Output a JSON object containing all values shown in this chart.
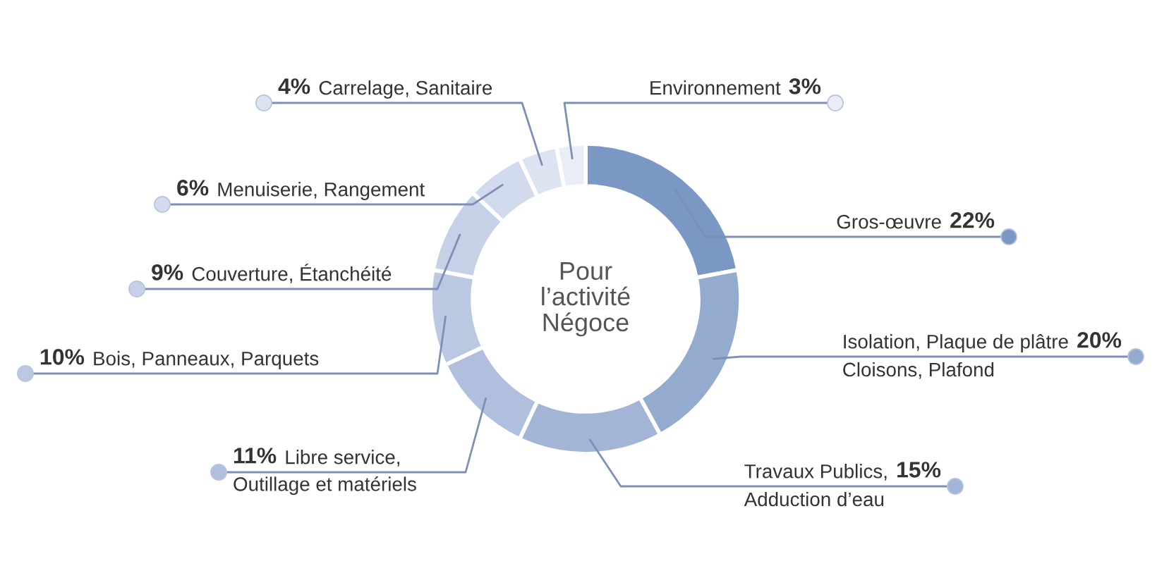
{
  "chart_data": {
    "type": "donut",
    "categories": [
      "Gros-œuvre",
      "Isolation, Plaque de plâtre\nCloisons, Plafond",
      "Travaux Publics,\nAdduction d’eau",
      "Libre service,\nOutillage et matériels",
      "Bois, Panneaux, Parquets",
      "Couverture, Étanchéité",
      "Menuiserie, Rangement",
      "Carrelage, Sanitaire",
      "Environnement"
    ],
    "values": [
      22,
      20,
      15,
      11,
      10,
      9,
      6,
      4,
      3
    ],
    "value_labels": [
      "22%",
      "20%",
      "15%",
      "11%",
      "10%",
      "9%",
      "6%",
      "4%",
      "3%"
    ],
    "colors": [
      "#7b98c4",
      "#94abd0",
      "#a2b5d7",
      "#afbfdd",
      "#bac8e2",
      "#c6d1e7",
      "#d2dbed",
      "#dde4f1",
      "#e9eef6"
    ],
    "annotations": [
      "Pour\nl’activité\nNégoce"
    ]
  }
}
